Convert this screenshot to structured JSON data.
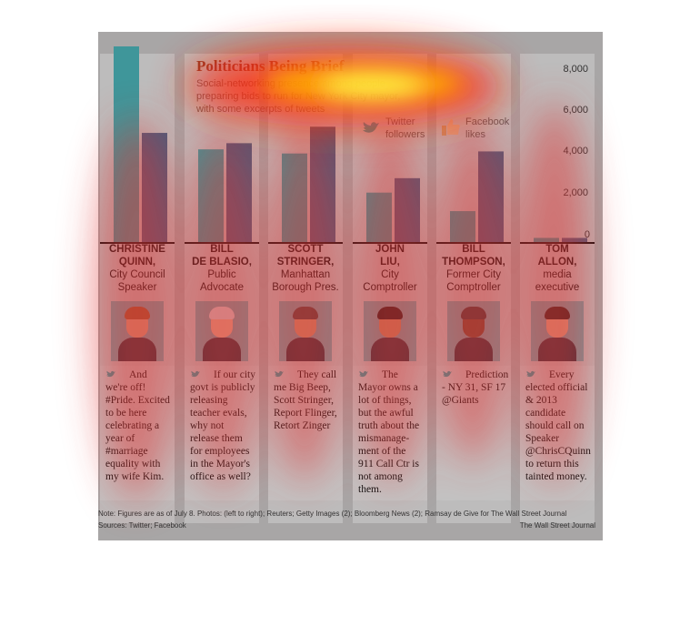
{
  "chart_data": {
    "type": "bar",
    "title": "Politicians Being Brief",
    "subtitle": "Social-networking presence among people preparing bids to run for New York City mayor, with some excerpts of tweets",
    "categories": [
      "CHRISTINE QUINN",
      "BILL DE BLASIO",
      "SCOTT STRINGER",
      "JOHN LIU",
      "BILL THOMPSON",
      "TOM ALLON"
    ],
    "series": [
      {
        "name": "Twitter followers",
        "color": "#3f969a",
        "values": [
          9500,
          4500,
          4300,
          2400,
          1500,
          200
        ]
      },
      {
        "name": "Facebook likes",
        "color": "#4a5d7d",
        "values": [
          5300,
          4800,
          5600,
          3100,
          4400,
          200
        ]
      }
    ],
    "ylim": [
      0,
      9500
    ],
    "yticks": [
      "8,000",
      "6,000",
      "4,000",
      "2,000",
      "0"
    ],
    "legend_position": "top-right"
  },
  "legend": {
    "twitter": "Twitter\nfollowers",
    "facebook": "Facebook\nlikes"
  },
  "politicians": [
    {
      "name": "CHRISTINE\nQUINN,",
      "role": "City Council\nSpeaker",
      "tweet": "And we're off! #Pride. Excited to be here celebrating a year of #marriage equality with my wife Kim."
    },
    {
      "name": "BILL\nDE BLASIO,",
      "role": "Public\nAdvocate",
      "tweet": "If our city govt is publicly releasing teacher evals, why not release them for employees in the Mayor's office as well?"
    },
    {
      "name": "SCOTT\nSTRINGER,",
      "role": "Manhattan\nBorough Pres.",
      "tweet": "They call me Big Beep, Scott Stringer, Report Flinger, Retort Zinger"
    },
    {
      "name": "JOHN\nLIU,",
      "role": "City\nComptroller",
      "tweet": "The Mayor owns a lot of things, but the awful truth about the mismanage-ment of the 911 Call Ctr is not among them."
    },
    {
      "name": "BILL\nTHOMPSON,",
      "role": "Former City\nComptroller",
      "tweet": "Prediction - NY 31, SF 17 @Giants"
    },
    {
      "name": "TOM\nALLON,",
      "role": "media\nexecutive",
      "tweet": "Every elected official & 2013 candidate should call on Speaker @ChrisCQuinn to return this tainted money."
    }
  ],
  "footer": {
    "note": "Note: Figures are as of July 8.  Photos: (left to right); Reuters; Getty Images (2); Bloomberg News (2); Ramsay de Give for The Wall Street Journal",
    "sources": "Sources: Twitter; Facebook",
    "credit": "The Wall Street Journal"
  },
  "colors": {
    "twitter": "#3f969a",
    "facebook": "#4a5d7d",
    "title": "#8a3b2a",
    "background": "#a8a6a6",
    "column": "#bdbcbc"
  }
}
